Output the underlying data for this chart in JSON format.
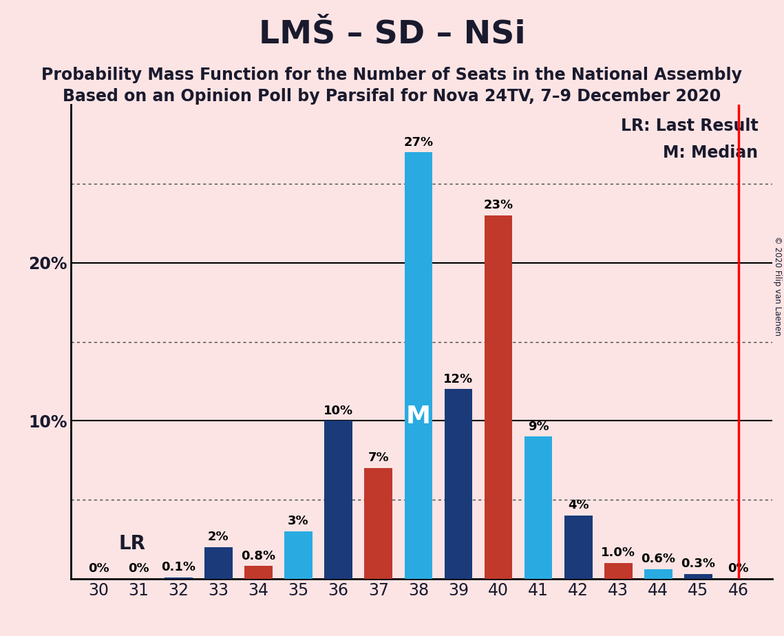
{
  "title": "LMŠ – SD – NSi",
  "subtitle1": "Probability Mass Function for the Number of Seats in the National Assembly",
  "subtitle2": "Based on an Opinion Poll by Parsifal for Nova 24TV, 7–9 December 2020",
  "copyright": "© 2020 Filip van Laenen",
  "seats": [
    30,
    31,
    32,
    33,
    34,
    35,
    36,
    37,
    38,
    39,
    40,
    41,
    42,
    43,
    44,
    45,
    46
  ],
  "probabilities": [
    0.0,
    0.0,
    0.1,
    2.0,
    0.8,
    3.0,
    10.0,
    7.0,
    27.0,
    12.0,
    23.0,
    9.0,
    4.0,
    1.0,
    0.6,
    0.3,
    0.0
  ],
  "bar_colors": [
    "#1a3a7a",
    "#1a3a7a",
    "#1a3a7a",
    "#1a3a7a",
    "#c0392b",
    "#29abe2",
    "#1a3a7a",
    "#c0392b",
    "#29abe2",
    "#1a3a7a",
    "#c0392b",
    "#29abe2",
    "#1a3a7a",
    "#c0392b",
    "#29abe2",
    "#1a3a7a",
    "#1a3a7a"
  ],
  "labels": [
    "0%",
    "0%",
    "0.1%",
    "2%",
    "0.8%",
    "3%",
    "10%",
    "7%",
    "27%",
    "12%",
    "23%",
    "9%",
    "4%",
    "1.0%",
    "0.6%",
    "0.3%",
    "0%"
  ],
  "median_seat": 38,
  "lr_seat": 46,
  "ylim": [
    0,
    30
  ],
  "major_yticks": [
    10,
    20
  ],
  "dotted_yticks": [
    5,
    15,
    25
  ],
  "background_color": "#fce4e4",
  "bar_width": 0.7,
  "title_fontsize": 34,
  "subtitle_fontsize": 17,
  "label_fontsize": 13,
  "axis_fontsize": 17,
  "annotation_fontsize": 17,
  "lr_text_fontsize": 20,
  "median_label_fontsize": 26
}
